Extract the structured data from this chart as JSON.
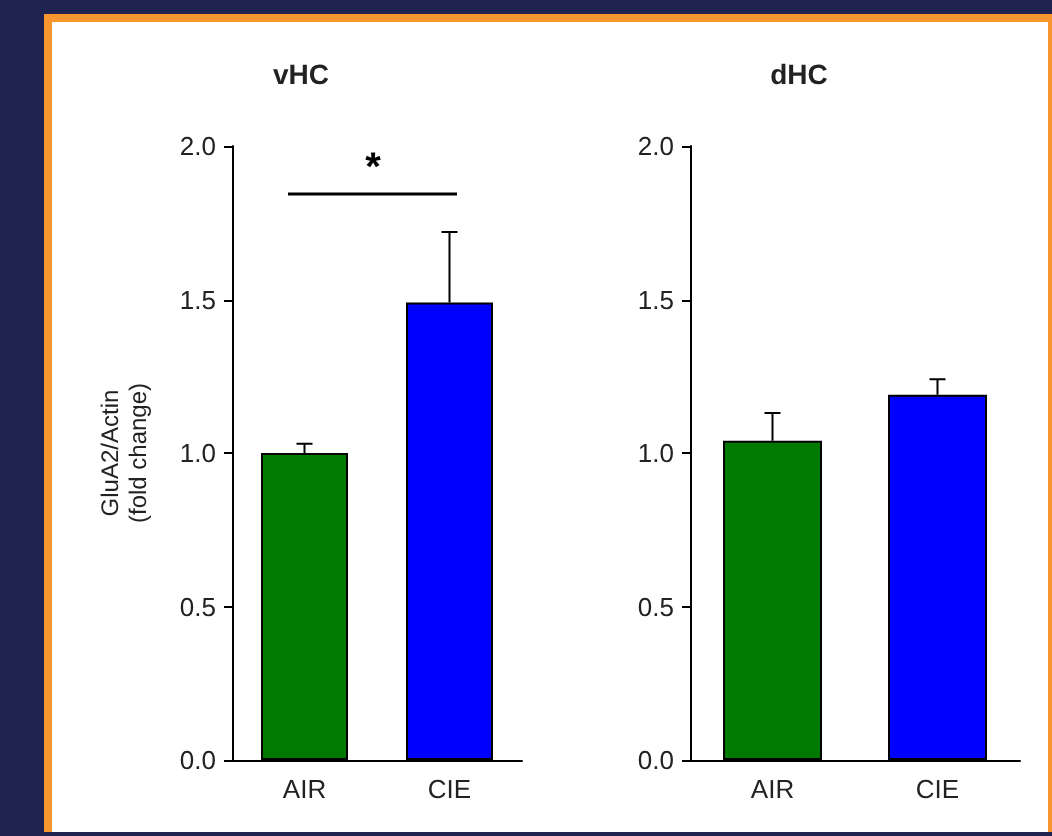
{
  "chart_data": [
    {
      "type": "bar",
      "title": "vHC",
      "ylabel": "GluA2/Actin\n(fold change)",
      "categories": [
        "AIR",
        "CIE"
      ],
      "values": [
        1.0,
        1.49
      ],
      "colors": [
        "#007a00",
        "#0000ff"
      ],
      "errors": [
        [
          1.0,
          1.03
        ],
        [
          1.49,
          1.72
        ]
      ],
      "ylim": [
        0,
        2
      ],
      "yticks": [
        {
          "value": 0,
          "label": "0.0"
        },
        {
          "value": 0.5,
          "label": "0.5"
        },
        {
          "value": 1,
          "label": "1.0"
        },
        {
          "value": 1.5,
          "label": "1.5"
        },
        {
          "value": 2,
          "label": "2.0"
        }
      ],
      "grid": false,
      "annotations": [
        "*"
      ]
    },
    {
      "type": "bar",
      "title": "dHC",
      "categories": [
        "AIR",
        "CIE"
      ],
      "values": [
        1.04,
        1.19
      ],
      "colors": [
        "#007a00",
        "#0000ff"
      ],
      "errors": [
        [
          1.04,
          1.13
        ],
        [
          1.19,
          1.24
        ]
      ],
      "ylim": [
        0,
        2
      ],
      "yticks": [
        {
          "value": 0,
          "label": "0.0"
        },
        {
          "value": 0.5,
          "label": "0.5"
        },
        {
          "value": 1,
          "label": "1.0"
        },
        {
          "value": 1.5,
          "label": "1.5"
        },
        {
          "value": 2,
          "label": "2.0"
        }
      ],
      "grid": false
    }
  ]
}
